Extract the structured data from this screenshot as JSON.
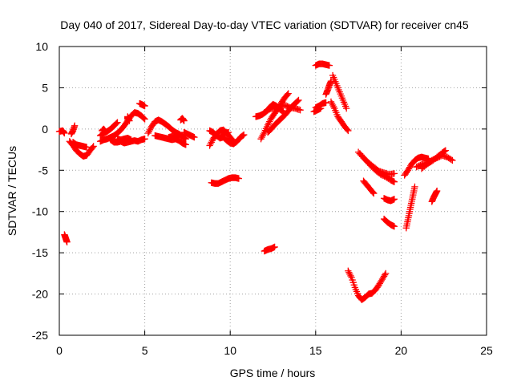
{
  "chart_data": {
    "type": "scatter",
    "title": "Day 040 of 2017, Sidereal Day-to-day VTEC variation (SDTVAR) for receiver cn45",
    "xlabel": "GPS time / hours",
    "ylabel": "SDTVAR / TECUs",
    "xlim": [
      0,
      25
    ],
    "ylim": [
      -25,
      10
    ],
    "xticks": [
      0,
      5,
      10,
      15,
      20,
      25
    ],
    "yticks": [
      -25,
      -20,
      -15,
      -10,
      -5,
      0,
      5,
      10
    ],
    "grid": true,
    "marker": "plus",
    "color": "#ff0000",
    "segments": [
      [
        [
          0.0,
          -0.3
        ],
        [
          0.2,
          -0.2
        ],
        [
          0.3,
          -0.5
        ]
      ],
      [
        [
          0.3,
          -12.8
        ],
        [
          0.35,
          -13.1
        ],
        [
          0.4,
          -13.4
        ],
        [
          0.45,
          -13.7
        ]
      ],
      [
        [
          0.7,
          -0.6
        ],
        [
          0.8,
          -0.2
        ],
        [
          0.9,
          0.4
        ]
      ],
      [
        [
          0.6,
          -1.5
        ],
        [
          0.8,
          -2.0
        ],
        [
          1.0,
          -2.6
        ],
        [
          1.2,
          -3.0
        ],
        [
          1.4,
          -3.3
        ],
        [
          1.6,
          -3.2
        ],
        [
          1.8,
          -2.6
        ],
        [
          2.0,
          -2.1
        ]
      ],
      [
        [
          0.8,
          -1.6
        ],
        [
          1.0,
          -1.9
        ],
        [
          1.2,
          -2.0
        ],
        [
          1.4,
          -2.1
        ],
        [
          1.6,
          -2.2
        ]
      ],
      [
        [
          2.5,
          -0.2
        ],
        [
          2.6,
          0.0
        ],
        [
          2.7,
          -0.3
        ]
      ],
      [
        [
          2.4,
          -1.5
        ],
        [
          2.6,
          -1.3
        ],
        [
          2.8,
          -1.2
        ],
        [
          3.0,
          -1.0
        ],
        [
          3.2,
          -0.8
        ],
        [
          3.4,
          -0.5
        ],
        [
          3.6,
          -0.1
        ],
        [
          3.8,
          0.4
        ],
        [
          4.0,
          1.0
        ],
        [
          4.2,
          1.6
        ],
        [
          4.4,
          2.0
        ],
        [
          4.6,
          1.9
        ],
        [
          4.8,
          1.6
        ],
        [
          5.0,
          1.2
        ]
      ],
      [
        [
          2.4,
          -0.8
        ],
        [
          2.6,
          -0.5
        ],
        [
          2.8,
          -0.3
        ],
        [
          3.0,
          0.0
        ],
        [
          3.2,
          0.4
        ],
        [
          3.4,
          0.8
        ]
      ],
      [
        [
          3.0,
          -1.3
        ],
        [
          3.2,
          -1.6
        ],
        [
          3.4,
          -1.6
        ],
        [
          3.6,
          -1.5
        ],
        [
          3.8,
          -1.7
        ],
        [
          4.0,
          -1.6
        ],
        [
          4.2,
          -1.5
        ],
        [
          4.4,
          -1.4
        ],
        [
          4.6,
          -1.5
        ],
        [
          4.8,
          -1.3
        ],
        [
          5.0,
          -1.2
        ]
      ],
      [
        [
          3.4,
          -1.2
        ],
        [
          3.6,
          -1.3
        ],
        [
          3.8,
          -1.2
        ],
        [
          4.0,
          -1.1
        ],
        [
          4.2,
          -1.3
        ]
      ],
      [
        [
          4.0,
          1.2
        ],
        [
          4.0,
          1.5
        ],
        [
          4.1,
          1.0
        ]
      ],
      [
        [
          4.7,
          3.1
        ],
        [
          4.8,
          3.0
        ],
        [
          4.9,
          2.9
        ],
        [
          5.0,
          2.8
        ]
      ],
      [
        [
          5.2,
          -0.5
        ],
        [
          5.4,
          0.3
        ],
        [
          5.6,
          0.9
        ],
        [
          5.8,
          1.1
        ],
        [
          6.0,
          0.9
        ],
        [
          6.2,
          0.6
        ],
        [
          6.4,
          0.3
        ],
        [
          6.6,
          -0.1
        ],
        [
          6.8,
          -0.4
        ],
        [
          7.0,
          -0.6
        ],
        [
          7.2,
          -0.9
        ],
        [
          7.4,
          -1.2
        ]
      ],
      [
        [
          5.6,
          -0.8
        ],
        [
          5.8,
          -0.9
        ],
        [
          6.0,
          -1.0
        ],
        [
          6.2,
          -1.1
        ],
        [
          6.4,
          -1.2
        ],
        [
          6.6,
          -1.3
        ],
        [
          6.8,
          -1.2
        ],
        [
          7.0,
          -1.4
        ],
        [
          7.2,
          -1.7
        ],
        [
          7.4,
          -1.9
        ]
      ],
      [
        [
          6.4,
          -1.0
        ],
        [
          6.6,
          -0.9
        ],
        [
          6.8,
          -0.8
        ],
        [
          7.0,
          -0.7
        ]
      ],
      [
        [
          7.1,
          1.1
        ],
        [
          7.2,
          1.3
        ],
        [
          7.3,
          1.0
        ]
      ],
      [
        [
          7.3,
          -0.4
        ],
        [
          7.5,
          -0.6
        ],
        [
          7.7,
          -0.8
        ],
        [
          7.9,
          -1.0
        ]
      ],
      [
        [
          8.9,
          -6.5
        ],
        [
          9.1,
          -6.6
        ],
        [
          9.3,
          -6.6
        ],
        [
          9.5,
          -6.4
        ],
        [
          9.7,
          -6.2
        ],
        [
          9.9,
          -6.0
        ],
        [
          10.1,
          -5.9
        ],
        [
          10.3,
          -5.9
        ],
        [
          10.5,
          -6.0
        ]
      ],
      [
        [
          8.8,
          -2.0
        ],
        [
          9.0,
          -1.2
        ],
        [
          9.2,
          -0.6
        ],
        [
          9.4,
          -0.2
        ],
        [
          9.6,
          -0.1
        ],
        [
          9.8,
          -0.5
        ],
        [
          10.0,
          -1.0
        ],
        [
          10.2,
          -1.5
        ]
      ],
      [
        [
          8.8,
          -0.2
        ],
        [
          9.0,
          -0.4
        ],
        [
          9.2,
          -0.8
        ],
        [
          9.4,
          -1.1
        ],
        [
          9.6,
          -1.0
        ],
        [
          9.8,
          -1.4
        ],
        [
          10.0,
          -1.7
        ],
        [
          10.2,
          -1.8
        ],
        [
          10.4,
          -1.5
        ],
        [
          10.6,
          -1.0
        ],
        [
          10.8,
          -0.7
        ]
      ],
      [
        [
          9.5,
          -0.8
        ],
        [
          9.7,
          -0.5
        ],
        [
          9.9,
          -0.4
        ]
      ],
      [
        [
          12.0,
          -14.8
        ],
        [
          12.2,
          -14.6
        ],
        [
          12.4,
          -14.5
        ],
        [
          12.6,
          -14.3
        ]
      ],
      [
        [
          11.5,
          1.5
        ],
        [
          11.7,
          1.6
        ],
        [
          11.9,
          1.8
        ],
        [
          12.1,
          2.1
        ],
        [
          12.3,
          2.6
        ],
        [
          12.5,
          3.0
        ],
        [
          12.7,
          2.8
        ],
        [
          12.9,
          2.4
        ],
        [
          13.1,
          2.1
        ]
      ],
      [
        [
          11.8,
          -1.2
        ],
        [
          12.0,
          -0.4
        ],
        [
          12.2,
          0.5
        ],
        [
          12.4,
          1.3
        ],
        [
          12.6,
          1.9
        ],
        [
          12.8,
          2.5
        ],
        [
          13.0,
          3.2
        ],
        [
          13.2,
          3.8
        ],
        [
          13.4,
          4.3
        ]
      ],
      [
        [
          12.2,
          -0.4
        ],
        [
          12.4,
          0.0
        ],
        [
          12.6,
          0.5
        ],
        [
          12.8,
          0.9
        ],
        [
          13.0,
          1.3
        ],
        [
          13.2,
          1.7
        ],
        [
          13.4,
          2.2
        ],
        [
          13.6,
          2.7
        ],
        [
          13.8,
          3.1
        ],
        [
          14.0,
          3.5
        ]
      ],
      [
        [
          12.0,
          2.0
        ],
        [
          12.3,
          2.4
        ],
        [
          12.6,
          2.6
        ],
        [
          12.9,
          2.7
        ],
        [
          13.2,
          2.9
        ],
        [
          13.5,
          2.6
        ],
        [
          13.8,
          2.5
        ],
        [
          14.1,
          2.3
        ]
      ],
      [
        [
          15.0,
          7.7
        ],
        [
          15.2,
          7.9
        ],
        [
          15.4,
          7.9
        ],
        [
          15.6,
          7.8
        ],
        [
          15.8,
          7.7
        ]
      ],
      [
        [
          15.0,
          2.6
        ],
        [
          15.2,
          2.8
        ],
        [
          15.4,
          3.1
        ],
        [
          15.6,
          3.2
        ]
      ],
      [
        [
          14.9,
          2.1
        ],
        [
          15.1,
          2.3
        ],
        [
          15.3,
          2.5
        ]
      ],
      [
        [
          15.6,
          4.2
        ],
        [
          15.7,
          4.7
        ],
        [
          15.8,
          5.3
        ],
        [
          15.9,
          5.8
        ]
      ],
      [
        [
          15.9,
          3.3
        ],
        [
          16.1,
          2.5
        ],
        [
          16.3,
          1.5
        ],
        [
          16.5,
          0.9
        ],
        [
          16.7,
          0.3
        ],
        [
          16.9,
          -0.2
        ]
      ],
      [
        [
          16.0,
          6.5
        ],
        [
          16.2,
          5.5
        ],
        [
          16.4,
          4.5
        ],
        [
          16.6,
          3.5
        ],
        [
          16.8,
          2.5
        ]
      ],
      [
        [
          16.9,
          -17.2
        ],
        [
          17.1,
          -18.0
        ],
        [
          17.3,
          -19.2
        ],
        [
          17.5,
          -20.2
        ],
        [
          17.7,
          -20.7
        ],
        [
          17.9,
          -20.4
        ],
        [
          18.1,
          -20.0
        ],
        [
          18.3,
          -19.9
        ],
        [
          18.5,
          -19.5
        ],
        [
          18.7,
          -18.9
        ],
        [
          18.9,
          -18.2
        ],
        [
          19.1,
          -17.5
        ]
      ],
      [
        [
          17.5,
          -2.8
        ],
        [
          17.8,
          -3.5
        ],
        [
          18.1,
          -4.1
        ],
        [
          18.4,
          -4.6
        ],
        [
          18.7,
          -5.1
        ],
        [
          19.0,
          -5.3
        ],
        [
          19.3,
          -5.5
        ],
        [
          19.6,
          -5.4
        ]
      ],
      [
        [
          17.6,
          -3.0
        ],
        [
          17.9,
          -3.7
        ],
        [
          18.2,
          -4.4
        ],
        [
          18.5,
          -5.0
        ],
        [
          18.8,
          -5.5
        ],
        [
          19.1,
          -5.8
        ],
        [
          19.4,
          -6.2
        ],
        [
          19.6,
          -6.4
        ]
      ],
      [
        [
          17.8,
          -6.3
        ],
        [
          18.0,
          -6.8
        ],
        [
          18.2,
          -7.3
        ],
        [
          18.4,
          -7.8
        ]
      ],
      [
        [
          19.0,
          -8.4
        ],
        [
          19.2,
          -8.6
        ],
        [
          19.4,
          -8.7
        ],
        [
          19.6,
          -8.5
        ]
      ],
      [
        [
          19.0,
          -10.9
        ],
        [
          19.2,
          -11.3
        ],
        [
          19.4,
          -11.6
        ],
        [
          19.6,
          -11.8
        ]
      ],
      [
        [
          20.3,
          -12.0
        ],
        [
          20.4,
          -11.0
        ],
        [
          20.5,
          -10.0
        ],
        [
          20.6,
          -9.0
        ],
        [
          20.7,
          -8.0
        ],
        [
          20.8,
          -7.0
        ]
      ],
      [
        [
          20.2,
          -5.6
        ],
        [
          20.4,
          -5.0
        ],
        [
          20.6,
          -4.3
        ],
        [
          20.8,
          -3.8
        ],
        [
          21.0,
          -3.5
        ],
        [
          21.2,
          -3.4
        ],
        [
          21.4,
          -3.5
        ],
        [
          21.6,
          -3.6
        ]
      ],
      [
        [
          20.9,
          -4.6
        ],
        [
          21.2,
          -4.3
        ],
        [
          21.5,
          -4.1
        ],
        [
          21.8,
          -3.8
        ],
        [
          22.1,
          -3.5
        ],
        [
          22.4,
          -3.2
        ],
        [
          22.7,
          -3.4
        ],
        [
          23.0,
          -3.8
        ]
      ],
      [
        [
          21.2,
          -4.8
        ],
        [
          21.5,
          -4.3
        ],
        [
          21.8,
          -3.9
        ],
        [
          22.1,
          -3.4
        ],
        [
          22.4,
          -2.9
        ],
        [
          22.6,
          -2.6
        ]
      ],
      [
        [
          21.8,
          -8.8
        ],
        [
          21.9,
          -8.3
        ],
        [
          22.0,
          -7.9
        ],
        [
          22.1,
          -7.5
        ]
      ]
    ]
  }
}
